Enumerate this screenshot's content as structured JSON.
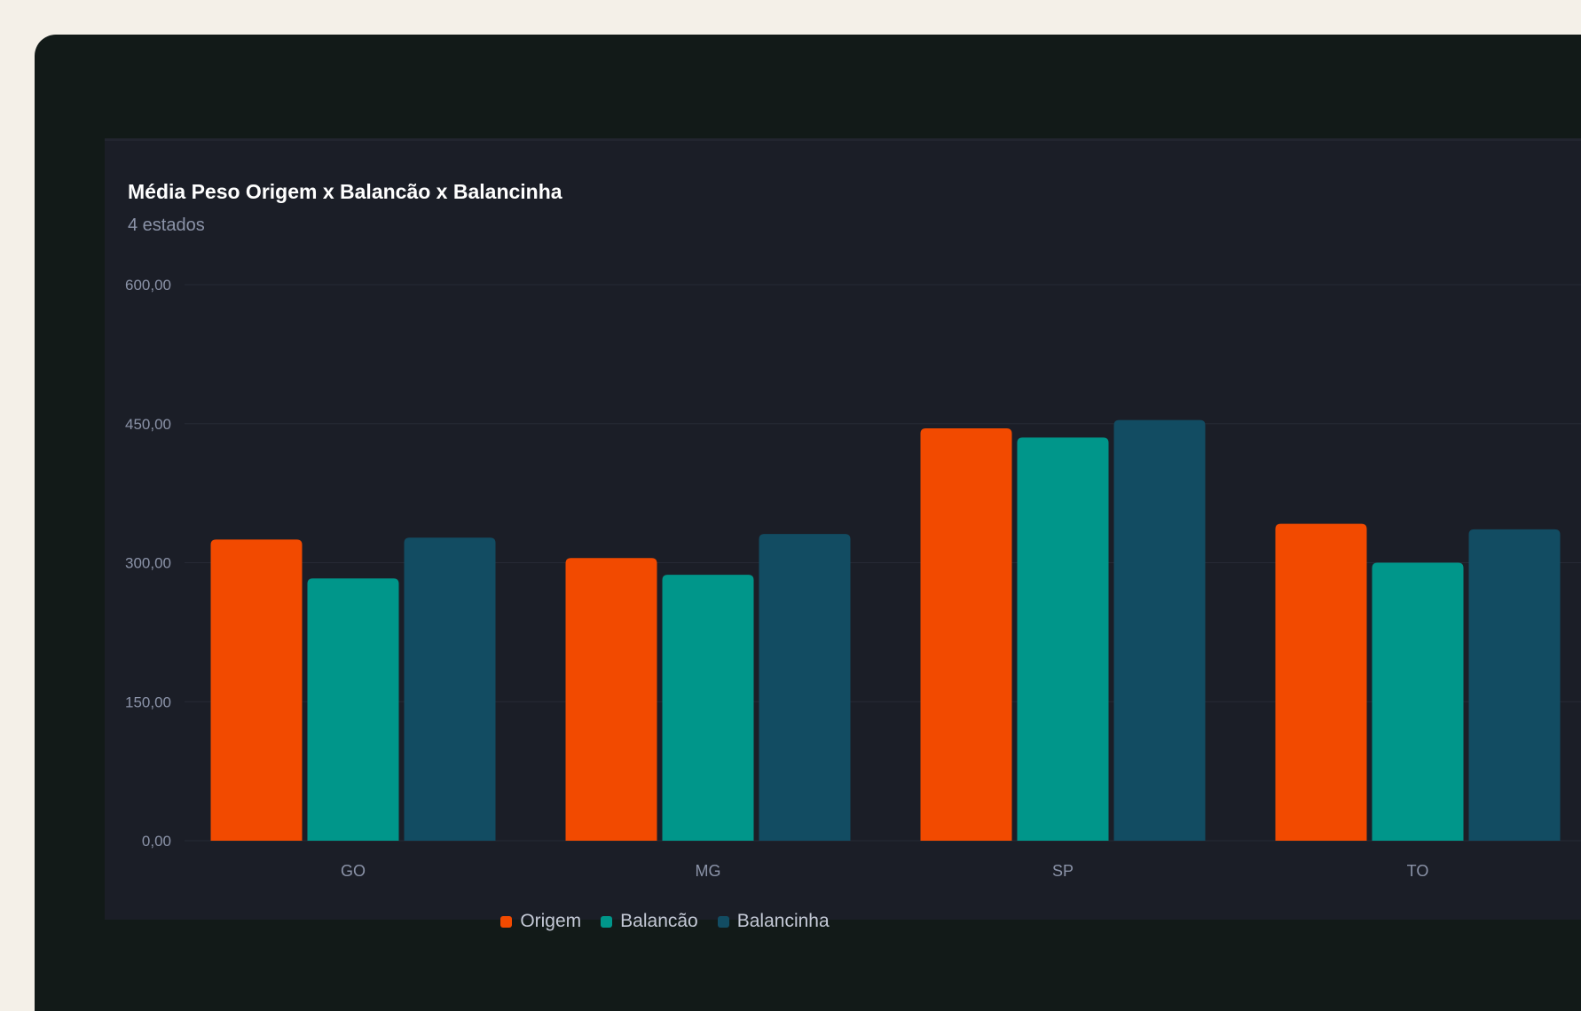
{
  "chart_data": {
    "type": "bar",
    "title": "Média Peso Origem x Balancão x Balancinha",
    "subtitle": "4 estados",
    "categories": [
      "GO",
      "MG",
      "SP",
      "TO"
    ],
    "series": [
      {
        "name": "Origem",
        "color": "#f24a00",
        "values": [
          325,
          305,
          445,
          342
        ]
      },
      {
        "name": "Balancão",
        "color": "#00968a",
        "values": [
          283,
          287,
          435,
          300
        ]
      },
      {
        "name": "Balancinha",
        "color": "#124c62",
        "values": [
          327,
          331,
          454,
          336
        ]
      }
    ],
    "ylim": [
      0,
      600
    ],
    "yticks": [
      "0,00",
      "150,00",
      "300,00",
      "450,00",
      "600,00"
    ],
    "ytick_values": [
      0,
      150,
      300,
      450,
      600
    ],
    "grid": true,
    "legend_position": "bottom"
  }
}
